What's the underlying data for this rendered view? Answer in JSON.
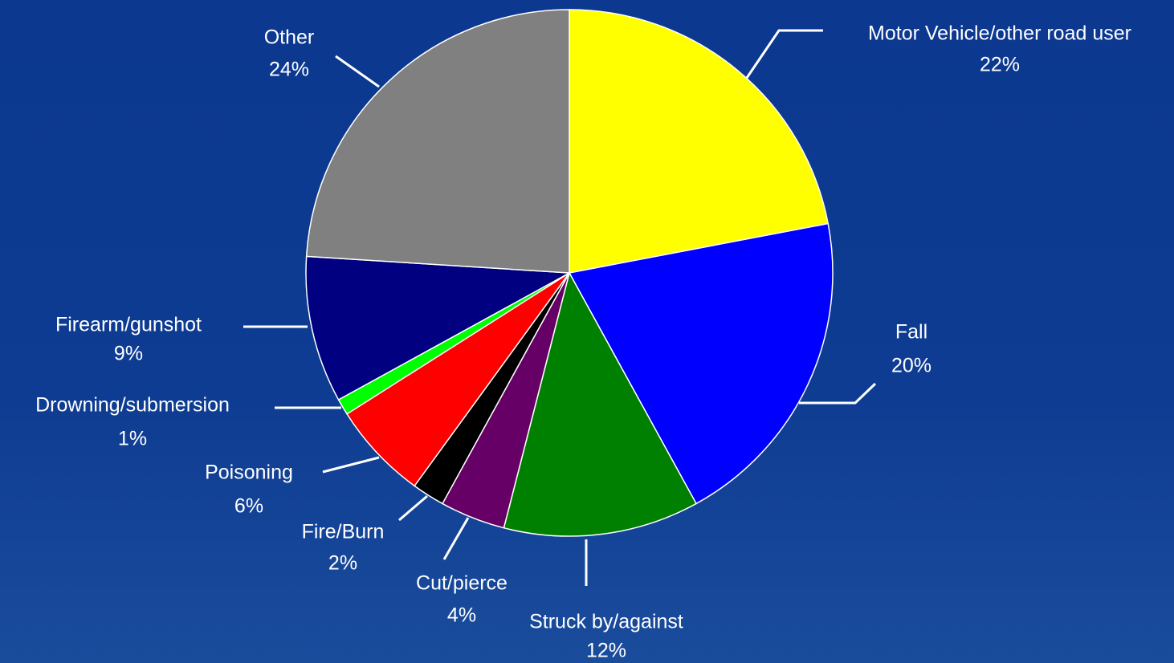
{
  "chart_data": {
    "type": "pie",
    "categories": [
      "Motor Vehicle/other road user",
      "Fall",
      "Struck by/against",
      "Cut/pierce",
      "Fire/Burn",
      "Poisoning",
      "Drowning/submersion",
      "Firearm/gunshot",
      "Other"
    ],
    "values": [
      22,
      20,
      12,
      4,
      2,
      6,
      1,
      9,
      24
    ],
    "value_labels": [
      "22%",
      "20%",
      "12%",
      "4%",
      "2%",
      "6%",
      "1%",
      "9%",
      "24%"
    ],
    "colors": [
      "#ffff00",
      "#0000ff",
      "#008000",
      "#660066",
      "#000000",
      "#ff0000",
      "#00ff00",
      "#000080",
      "#808080"
    ]
  }
}
